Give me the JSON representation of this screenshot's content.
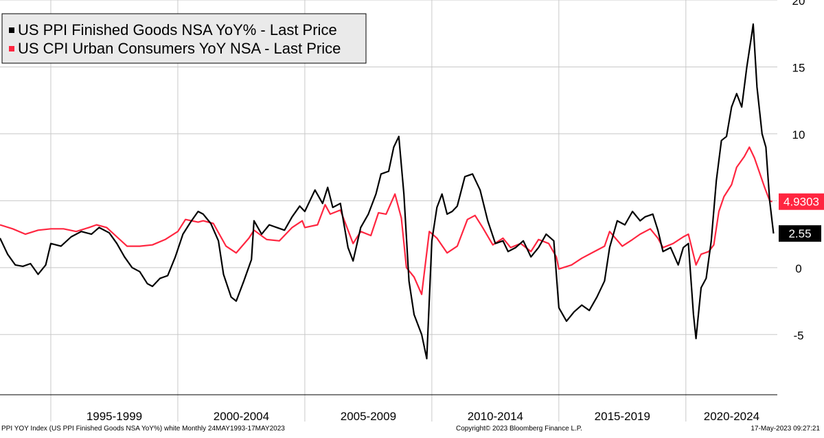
{
  "chart_data": {
    "type": "line",
    "legend_position": "top-left",
    "grid": true,
    "ylim": [
      -9.5,
      20
    ],
    "y_ticks": [
      20,
      15,
      10,
      5,
      0,
      -5
    ],
    "y_tick_labels": [
      "20",
      "15",
      "10",
      "",
      "0",
      "-5"
    ],
    "x_range": [
      1993.0,
      2023.6
    ],
    "period_labels": [
      {
        "label": "1995-1999",
        "start": 1995,
        "end": 2000
      },
      {
        "label": "2000-2004",
        "start": 2000,
        "end": 2005
      },
      {
        "label": "2005-2009",
        "start": 2005,
        "end": 2010
      },
      {
        "label": "2010-2014",
        "start": 2010,
        "end": 2015
      },
      {
        "label": "2015-2019",
        "start": 2015,
        "end": 2020
      },
      {
        "label": "2020-2024",
        "start": 2020,
        "end": 2025
      }
    ],
    "series": [
      {
        "name": "US PPI Finished Goods NSA YoY% - Last Price",
        "color": "#000000",
        "last_value_label": "2.55",
        "points": [
          [
            1993.0,
            2.2
          ],
          [
            1993.3,
            1.0
          ],
          [
            1993.6,
            0.2
          ],
          [
            1993.9,
            0.1
          ],
          [
            1994.2,
            0.3
          ],
          [
            1994.5,
            -0.5
          ],
          [
            1994.8,
            0.2
          ],
          [
            1995.0,
            1.8
          ],
          [
            1995.4,
            1.6
          ],
          [
            1995.8,
            2.3
          ],
          [
            1996.2,
            2.7
          ],
          [
            1996.6,
            2.5
          ],
          [
            1996.9,
            3.0
          ],
          [
            1997.3,
            2.6
          ],
          [
            1997.6,
            1.8
          ],
          [
            1997.9,
            0.8
          ],
          [
            1998.2,
            0.0
          ],
          [
            1998.5,
            -0.3
          ],
          [
            1998.8,
            -1.2
          ],
          [
            1999.0,
            -1.4
          ],
          [
            1999.3,
            -0.8
          ],
          [
            1999.6,
            -0.6
          ],
          [
            1999.9,
            0.8
          ],
          [
            2000.2,
            2.5
          ],
          [
            2000.5,
            3.4
          ],
          [
            2000.8,
            4.2
          ],
          [
            2001.0,
            4.0
          ],
          [
            2001.3,
            3.3
          ],
          [
            2001.6,
            2.0
          ],
          [
            2001.8,
            -0.5
          ],
          [
            2002.1,
            -2.2
          ],
          [
            2002.3,
            -2.5
          ],
          [
            2002.6,
            -1.0
          ],
          [
            2002.9,
            0.6
          ],
          [
            2003.0,
            3.5
          ],
          [
            2003.3,
            2.5
          ],
          [
            2003.6,
            3.2
          ],
          [
            2003.9,
            3.0
          ],
          [
            2004.2,
            2.8
          ],
          [
            2004.5,
            3.8
          ],
          [
            2004.8,
            4.6
          ],
          [
            2005.0,
            4.2
          ],
          [
            2005.4,
            5.8
          ],
          [
            2005.7,
            4.8
          ],
          [
            2005.9,
            6.0
          ],
          [
            2006.1,
            4.5
          ],
          [
            2006.4,
            4.8
          ],
          [
            2006.7,
            1.5
          ],
          [
            2006.9,
            0.5
          ],
          [
            2007.2,
            3.0
          ],
          [
            2007.5,
            4.0
          ],
          [
            2007.8,
            5.5
          ],
          [
            2008.0,
            7.0
          ],
          [
            2008.3,
            7.2
          ],
          [
            2008.5,
            9.0
          ],
          [
            2008.7,
            9.8
          ],
          [
            2008.9,
            5.5
          ],
          [
            2009.1,
            -1.0
          ],
          [
            2009.3,
            -3.5
          ],
          [
            2009.6,
            -5.0
          ],
          [
            2009.8,
            -6.8
          ],
          [
            2010.0,
            2.0
          ],
          [
            2010.2,
            4.5
          ],
          [
            2010.4,
            5.5
          ],
          [
            2010.6,
            4.0
          ],
          [
            2010.8,
            4.2
          ],
          [
            2011.0,
            4.6
          ],
          [
            2011.3,
            6.8
          ],
          [
            2011.6,
            7.0
          ],
          [
            2011.9,
            5.8
          ],
          [
            2012.2,
            3.5
          ],
          [
            2012.5,
            1.8
          ],
          [
            2012.8,
            2.0
          ],
          [
            2013.0,
            1.2
          ],
          [
            2013.3,
            1.5
          ],
          [
            2013.6,
            2.0
          ],
          [
            2013.9,
            0.8
          ],
          [
            2014.2,
            1.5
          ],
          [
            2014.5,
            2.5
          ],
          [
            2014.8,
            2.0
          ],
          [
            2015.0,
            -3.0
          ],
          [
            2015.3,
            -4.0
          ],
          [
            2015.6,
            -3.3
          ],
          [
            2015.9,
            -2.8
          ],
          [
            2016.2,
            -3.2
          ],
          [
            2016.5,
            -2.2
          ],
          [
            2016.8,
            -1.0
          ],
          [
            2017.0,
            1.5
          ],
          [
            2017.3,
            3.5
          ],
          [
            2017.6,
            3.2
          ],
          [
            2017.9,
            4.2
          ],
          [
            2018.2,
            3.5
          ],
          [
            2018.4,
            3.8
          ],
          [
            2018.7,
            4.0
          ],
          [
            2018.9,
            2.8
          ],
          [
            2019.1,
            1.2
          ],
          [
            2019.4,
            1.5
          ],
          [
            2019.7,
            0.2
          ],
          [
            2019.9,
            1.5
          ],
          [
            2020.1,
            1.8
          ],
          [
            2020.3,
            -3.5
          ],
          [
            2020.4,
            -5.3
          ],
          [
            2020.6,
            -1.5
          ],
          [
            2020.8,
            -0.8
          ],
          [
            2021.0,
            2.0
          ],
          [
            2021.2,
            6.5
          ],
          [
            2021.4,
            9.5
          ],
          [
            2021.6,
            9.8
          ],
          [
            2021.8,
            12.0
          ],
          [
            2022.0,
            13.0
          ],
          [
            2022.2,
            12.0
          ],
          [
            2022.4,
            15.0
          ],
          [
            2022.6,
            17.5
          ],
          [
            2022.65,
            18.2
          ],
          [
            2022.8,
            13.5
          ],
          [
            2023.0,
            10.0
          ],
          [
            2023.15,
            9.0
          ],
          [
            2023.3,
            5.0
          ],
          [
            2023.45,
            2.55
          ]
        ]
      },
      {
        "name": "US CPI Urban Consumers YoY NSA - Last Price",
        "color": "#ff2640",
        "last_value_label": "4.9303",
        "points": [
          [
            1993.0,
            3.2
          ],
          [
            1993.5,
            2.9
          ],
          [
            1994.0,
            2.5
          ],
          [
            1994.5,
            2.8
          ],
          [
            1995.0,
            2.9
          ],
          [
            1995.5,
            2.9
          ],
          [
            1996.0,
            2.7
          ],
          [
            1996.5,
            3.0
          ],
          [
            1996.8,
            3.2
          ],
          [
            1997.2,
            3.0
          ],
          [
            1997.6,
            2.3
          ],
          [
            1998.0,
            1.6
          ],
          [
            1998.5,
            1.6
          ],
          [
            1999.0,
            1.7
          ],
          [
            1999.5,
            2.1
          ],
          [
            2000.0,
            2.7
          ],
          [
            2000.3,
            3.6
          ],
          [
            2000.8,
            3.4
          ],
          [
            2001.0,
            3.5
          ],
          [
            2001.4,
            3.3
          ],
          [
            2001.9,
            1.6
          ],
          [
            2002.3,
            1.1
          ],
          [
            2002.8,
            2.2
          ],
          [
            2003.0,
            2.8
          ],
          [
            2003.5,
            2.1
          ],
          [
            2004.0,
            2.0
          ],
          [
            2004.5,
            3.0
          ],
          [
            2004.9,
            3.5
          ],
          [
            2005.0,
            3.0
          ],
          [
            2005.5,
            3.2
          ],
          [
            2005.8,
            4.7
          ],
          [
            2006.0,
            4.0
          ],
          [
            2006.4,
            4.3
          ],
          [
            2006.9,
            1.8
          ],
          [
            2007.2,
            2.7
          ],
          [
            2007.6,
            2.4
          ],
          [
            2007.9,
            4.1
          ],
          [
            2008.2,
            4.0
          ],
          [
            2008.55,
            5.5
          ],
          [
            2008.8,
            3.7
          ],
          [
            2009.0,
            0.0
          ],
          [
            2009.3,
            -0.7
          ],
          [
            2009.6,
            -2.0
          ],
          [
            2009.9,
            2.7
          ],
          [
            2010.2,
            2.2
          ],
          [
            2010.6,
            1.1
          ],
          [
            2011.0,
            1.6
          ],
          [
            2011.4,
            3.6
          ],
          [
            2011.7,
            3.9
          ],
          [
            2012.0,
            3.0
          ],
          [
            2012.4,
            1.7
          ],
          [
            2012.8,
            2.2
          ],
          [
            2013.1,
            1.5
          ],
          [
            2013.5,
            1.8
          ],
          [
            2013.9,
            1.2
          ],
          [
            2014.2,
            2.1
          ],
          [
            2014.6,
            1.8
          ],
          [
            2014.9,
            0.8
          ],
          [
            2015.0,
            -0.1
          ],
          [
            2015.5,
            0.2
          ],
          [
            2015.9,
            0.7
          ],
          [
            2016.3,
            1.1
          ],
          [
            2016.8,
            1.6
          ],
          [
            2017.0,
            2.7
          ],
          [
            2017.5,
            1.6
          ],
          [
            2017.9,
            2.1
          ],
          [
            2018.2,
            2.5
          ],
          [
            2018.6,
            2.9
          ],
          [
            2018.9,
            2.2
          ],
          [
            2019.1,
            1.5
          ],
          [
            2019.5,
            1.8
          ],
          [
            2019.9,
            2.3
          ],
          [
            2020.1,
            2.5
          ],
          [
            2020.4,
            0.2
          ],
          [
            2020.6,
            1.0
          ],
          [
            2020.9,
            1.2
          ],
          [
            2021.1,
            1.7
          ],
          [
            2021.3,
            4.2
          ],
          [
            2021.5,
            5.3
          ],
          [
            2021.8,
            6.2
          ],
          [
            2022.0,
            7.5
          ],
          [
            2022.3,
            8.3
          ],
          [
            2022.5,
            9.0
          ],
          [
            2022.7,
            8.2
          ],
          [
            2022.9,
            7.1
          ],
          [
            2023.1,
            6.0
          ],
          [
            2023.3,
            5.0
          ],
          [
            2023.4,
            4.9303
          ]
        ]
      }
    ]
  },
  "footer": {
    "left": "PPI YOY Index (US PPI Finished Goods NSA YoY%) white  Monthly 24MAY1993-17MAY2023",
    "center": "Copyright© 2023 Bloomberg Finance L.P.",
    "right": "17-May-2023 09:27:21"
  },
  "colors": {
    "background": "#ffffff",
    "grid": "#c8c8c8",
    "legend_bg": "#eaeaea",
    "ppi": "#000000",
    "cpi": "#ff2640"
  }
}
